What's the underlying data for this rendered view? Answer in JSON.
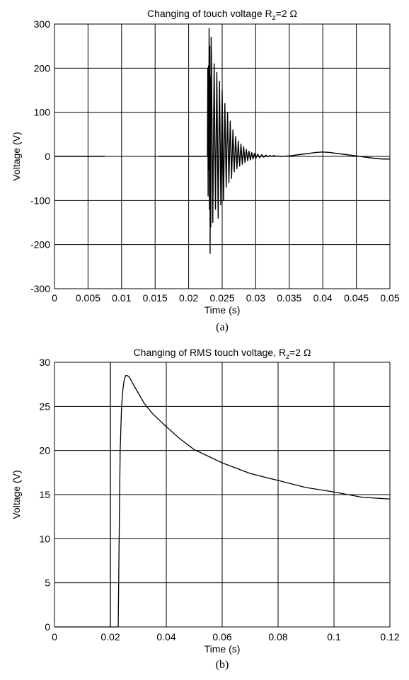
{
  "chart_data": [
    {
      "type": "line",
      "title_main": "Changing of touch voltage R",
      "title_sub": "z",
      "title_tail": "=2 Ω",
      "xlabel": "Time (s)",
      "ylabel": "Voltage (V)",
      "caption": "(a)",
      "xlim": [
        0,
        0.05
      ],
      "ylim": [
        -300,
        300
      ],
      "x_ticks": [
        0,
        0.005,
        0.01,
        0.015,
        0.02,
        0.025,
        0.03,
        0.035,
        0.04,
        0.045,
        0.05
      ],
      "x_tick_labels": [
        "0",
        "0.005",
        "0.01",
        "0.015",
        "0.02",
        "0.025",
        "0.03",
        "0.035",
        "0.04",
        "0.045",
        "0.05"
      ],
      "y_ticks": [
        -300,
        -200,
        -100,
        0,
        100,
        200,
        300
      ],
      "y_tick_labels": [
        "-300",
        "-200",
        "-100",
        "0",
        "100",
        "200",
        "300"
      ],
      "grid": true,
      "series": [
        {
          "x": [
            0,
            0.0075,
            0.0075,
            0.0155,
            0.0155,
            0.0228,
            0.02285,
            0.0229,
            0.02295,
            0.023,
            0.02305,
            0.0231,
            0.02315,
            0.0232,
            0.02325,
            0.0233,
            0.02335,
            0.0234,
            0.0236,
            0.0238,
            0.024,
            0.0242,
            0.0244,
            0.0246,
            0.0248,
            0.025,
            0.0252,
            0.0254,
            0.0256,
            0.0258,
            0.026,
            0.0262,
            0.0264,
            0.0266,
            0.0268,
            0.027,
            0.0272,
            0.0274,
            0.0276,
            0.0278,
            0.028,
            0.0282,
            0.0284,
            0.0286,
            0.0288,
            0.029,
            0.0292,
            0.0294,
            0.0296,
            0.0298,
            0.03,
            0.0303,
            0.0306,
            0.0309,
            0.0312,
            0.0315,
            0.0318,
            0.0321,
            0.0324,
            0.0327,
            0.033,
            0.0333,
            0.0336,
            0.034,
            0.035,
            0.036,
            0.037,
            0.038,
            0.039,
            0.04,
            0.041,
            0.042,
            0.043,
            0.044,
            0.045,
            0.046,
            0.047,
            0.048,
            0.049,
            0.05
          ],
          "y": [
            0,
            0,
            null,
            0,
            0,
            0,
            200,
            -90,
            205,
            -30,
            290,
            -120,
            250,
            -220,
            180,
            -160,
            270,
            220,
            -150,
            210,
            -120,
            190,
            -140,
            170,
            -110,
            150,
            -100,
            120,
            -70,
            100,
            -60,
            80,
            -50,
            60,
            -35,
            45,
            -28,
            35,
            -22,
            28,
            -18,
            22,
            -14,
            16,
            -10,
            12,
            -8,
            9,
            -6,
            7,
            -5,
            5,
            -3,
            4,
            -2,
            3,
            -1,
            2,
            0,
            2,
            0,
            1,
            0,
            0,
            1,
            3,
            5,
            7,
            9,
            10,
            9,
            7,
            5,
            3,
            1,
            -1,
            -3,
            -5,
            -6,
            -6
          ]
        }
      ]
    },
    {
      "type": "line",
      "title_main": "Changing of RMS touch voltage, R",
      "title_sub": "z",
      "title_tail": "=2 Ω",
      "xlabel": "Time (s)",
      "ylabel": "Voltage (V)",
      "caption": "(b)",
      "xlim": [
        0,
        0.12
      ],
      "ylim": [
        0,
        30
      ],
      "x_ticks": [
        0,
        0.02,
        0.04,
        0.06,
        0.08,
        0.1,
        0.12
      ],
      "x_tick_labels": [
        "0",
        "0.02",
        "0.04",
        "0.06",
        "0.08",
        "0.1",
        "0.12"
      ],
      "y_ticks": [
        0,
        5,
        10,
        15,
        20,
        25,
        30
      ],
      "y_tick_labels": [
        "0",
        "5",
        "10",
        "15",
        "20",
        "25",
        "30"
      ],
      "grid": true,
      "series": [
        {
          "x": [
            0.0,
            0.0195,
            0.02,
            0.02,
            0.0228,
            0.0232,
            0.0235,
            0.024,
            0.0245,
            0.025,
            0.0255,
            0.026,
            0.0265,
            0.027,
            0.028,
            0.03,
            0.032,
            0.035,
            0.04,
            0.045,
            0.05,
            0.06,
            0.07,
            0.08,
            0.09,
            0.1,
            0.11,
            0.12
          ],
          "y": [
            0,
            0,
            0,
            0,
            0,
            12,
            20,
            25,
            27,
            28.1,
            28.5,
            28.5,
            28.4,
            28.2,
            27.6,
            26.5,
            25.4,
            24.2,
            22.7,
            21.3,
            20.1,
            18.6,
            17.4,
            16.6,
            15.8,
            15.3,
            14.7,
            14.5
          ]
        },
        {
          "x": [
            0.02,
            0.02
          ],
          "y": [
            0,
            30
          ]
        }
      ]
    }
  ]
}
